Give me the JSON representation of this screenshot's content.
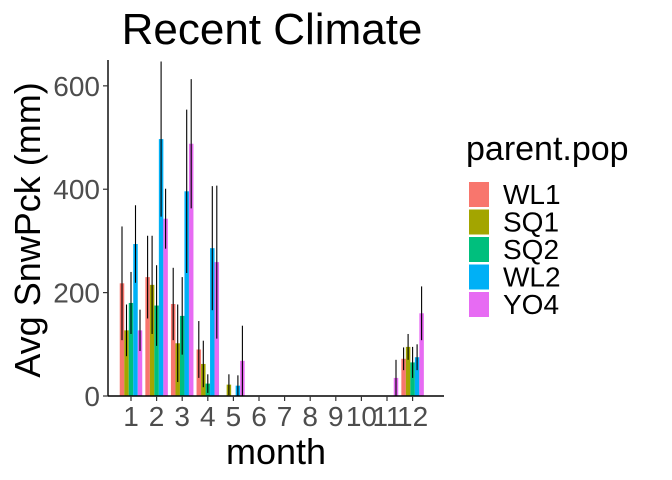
{
  "chart_data": {
    "type": "bar",
    "title": "Recent Climate",
    "xlabel": "month",
    "ylabel": "Avg SnwPck (mm)",
    "categories": [
      "1",
      "2",
      "3",
      "4",
      "5",
      "6",
      "7",
      "8",
      "9",
      "10",
      "11",
      "12"
    ],
    "ylim": [
      0,
      650
    ],
    "yticks": [
      0,
      200,
      400,
      600
    ],
    "legend_title": "parent.pop",
    "legend_position": "right",
    "grid": false,
    "series": [
      {
        "name": "WL1",
        "color": "#F8766D",
        "values": [
          218,
          230,
          178,
          90,
          0,
          0,
          0,
          0,
          0,
          0,
          0,
          72
        ],
        "error": [
          110,
          80,
          70,
          55,
          0,
          0,
          0,
          0,
          0,
          0,
          0,
          22
        ]
      },
      {
        "name": "SQ1",
        "color": "#A3A500",
        "values": [
          127,
          215,
          102,
          62,
          22,
          0,
          0,
          0,
          0,
          0,
          0,
          95
        ],
        "error": [
          50,
          95,
          75,
          45,
          20,
          0,
          0,
          0,
          0,
          0,
          0,
          25
        ]
      },
      {
        "name": "SQ2",
        "color": "#00BF7D",
        "values": [
          180,
          175,
          155,
          24,
          0,
          0,
          0,
          0,
          0,
          0,
          0,
          65
        ],
        "error": [
          60,
          78,
          75,
          18,
          0,
          0,
          0,
          0,
          0,
          0,
          0,
          30
        ]
      },
      {
        "name": "WL2",
        "color": "#00B0F6",
        "values": [
          294,
          497,
          396,
          286,
          20,
          0,
          0,
          0,
          0,
          0,
          0,
          75
        ],
        "error": [
          75,
          150,
          158,
          120,
          20,
          0,
          0,
          0,
          0,
          0,
          0,
          25
        ]
      },
      {
        "name": "YO4",
        "color": "#E76BF3",
        "values": [
          127,
          343,
          488,
          259,
          68,
          0,
          0,
          0,
          0,
          0,
          35,
          160
        ],
        "error": [
          40,
          58,
          125,
          148,
          68,
          0,
          0,
          0,
          0,
          0,
          35,
          52
        ]
      }
    ]
  }
}
